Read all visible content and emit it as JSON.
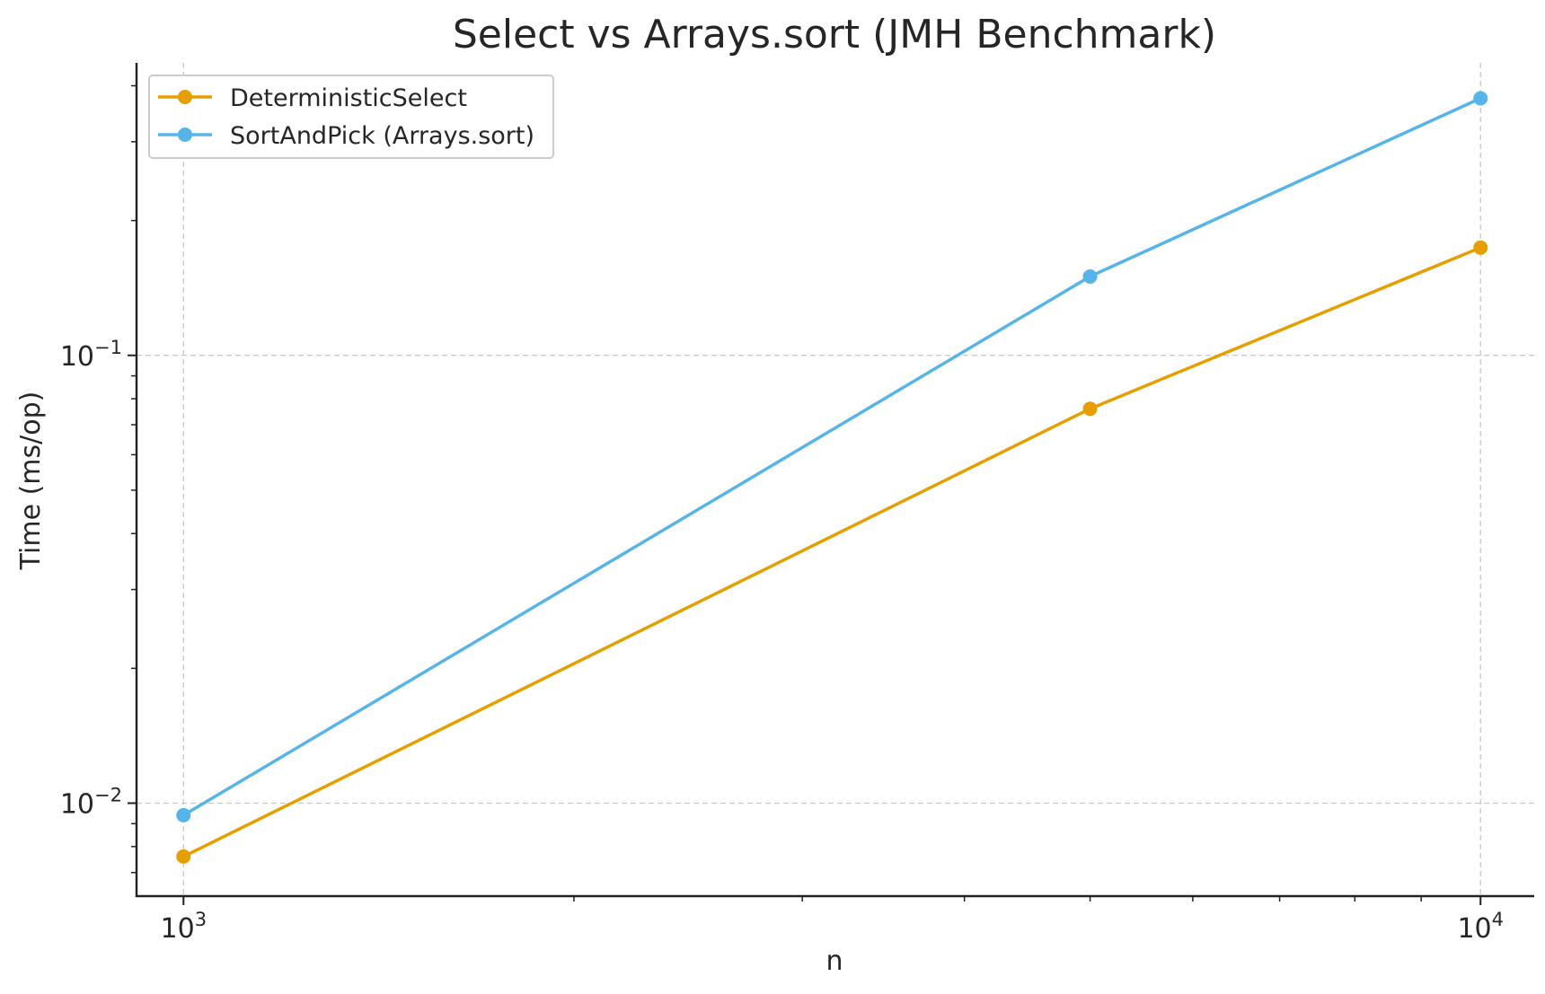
{
  "chart_data": {
    "type": "line",
    "title": "Select vs Arrays.sort (JMH Benchmark)",
    "xlabel": "n",
    "ylabel": "Time (ms/op)",
    "x_scale": "log",
    "y_scale": "log",
    "xlim": [
      920,
      11000
    ],
    "ylim": [
      0.0062,
      0.45
    ],
    "grid": true,
    "legend_position": "top-left",
    "x_ticks": [
      {
        "value": 1000,
        "base": "10",
        "exp": "3"
      },
      {
        "value": 10000,
        "base": "10",
        "exp": "4"
      }
    ],
    "y_ticks": [
      {
        "value": 0.01,
        "base": "10",
        "exp": "−2"
      },
      {
        "value": 0.1,
        "base": "10",
        "exp": "−1"
      }
    ],
    "x": [
      1000,
      5000,
      10000
    ],
    "series": [
      {
        "name": "DeterministicSelect",
        "color": "#E69F00",
        "values": [
          0.0076,
          0.076,
          0.174
        ]
      },
      {
        "name": "SortAndPick (Arrays.sort)",
        "color": "#56B4E9",
        "values": [
          0.0094,
          0.15,
          0.375
        ]
      }
    ]
  }
}
